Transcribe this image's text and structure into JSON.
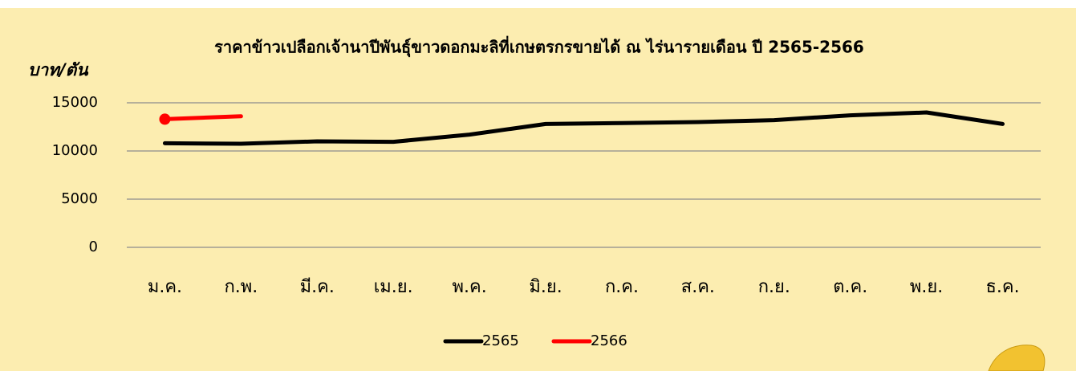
{
  "chart_data": {
    "type": "line",
    "title": "ราคาข้าวเปลือกเจ้านาปีพันธุ์ขาวดอกมะลิที่เกษตรกรขายได้ ณ ไร่นารายเดือน ปี 2565-2566",
    "y_label": "บาท/ตัน",
    "categories": [
      "ม.ค.",
      "ก.พ.",
      "มี.ค.",
      "เม.ย.",
      "พ.ค.",
      "มิ.ย.",
      "ก.ค.",
      "ส.ค.",
      "ก.ย.",
      "ต.ค.",
      "พ.ย.",
      "ธ.ค."
    ],
    "series": [
      {
        "name": "2565",
        "color": "#000000",
        "values": [
          10800,
          10750,
          11000,
          10950,
          11700,
          12800,
          12900,
          13000,
          13200,
          13700,
          14000,
          12800
        ]
      },
      {
        "name": "2566",
        "color": "#ff0000",
        "values": [
          13300,
          13600,
          null,
          null,
          null,
          null,
          null,
          null,
          null,
          null,
          null,
          null
        ]
      }
    ],
    "ylim": [
      0,
      15000
    ],
    "yticks": [
      0,
      5000,
      10000,
      15000
    ],
    "grid": true,
    "legend": "bottom"
  }
}
